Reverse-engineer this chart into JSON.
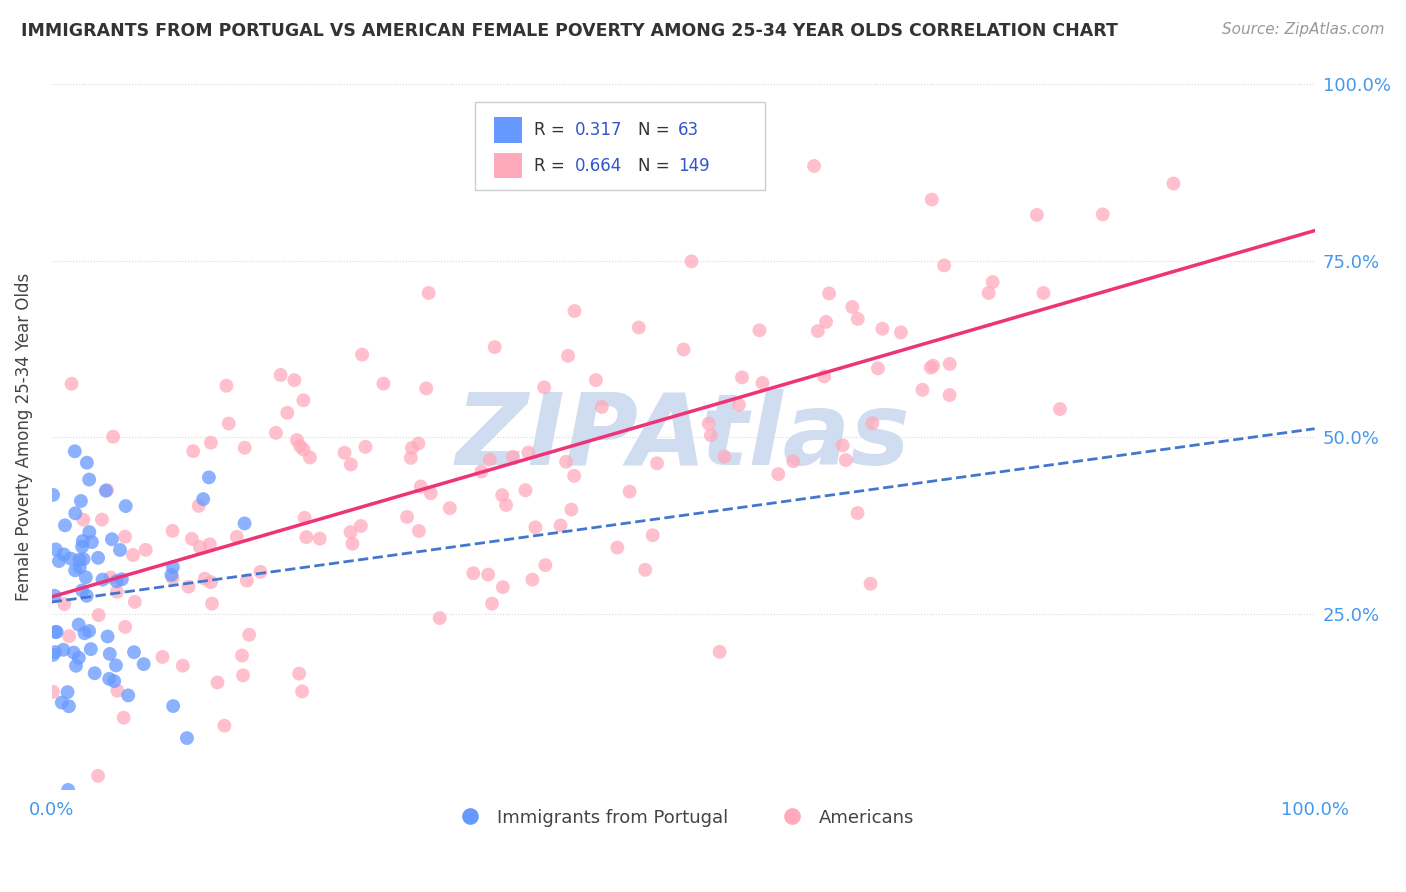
{
  "title": "IMMIGRANTS FROM PORTUGAL VS AMERICAN FEMALE POVERTY AMONG 25-34 YEAR OLDS CORRELATION CHART",
  "source": "Source: ZipAtlas.com",
  "ylabel": "Female Poverty Among 25-34 Year Olds",
  "xlim": [
    0,
    1.0
  ],
  "ylim": [
    0,
    1.0
  ],
  "legend1_label": "Immigrants from Portugal",
  "legend2_label": "Americans",
  "R1": "0.317",
  "N1": "63",
  "R2": "0.664",
  "N2": "149",
  "scatter1_color": "#6699ff",
  "scatter2_color": "#ffaabb",
  "line1_color": "#4477cc",
  "line2_color": "#ee3377",
  "background_color": "#ffffff",
  "grid_color": "#d8d8d8",
  "title_color": "#333333",
  "label_color": "#444444",
  "source_color": "#999999",
  "stat_color": "#3355cc",
  "tick_color": "#4499ee",
  "watermark_color": "#d0ddf0"
}
